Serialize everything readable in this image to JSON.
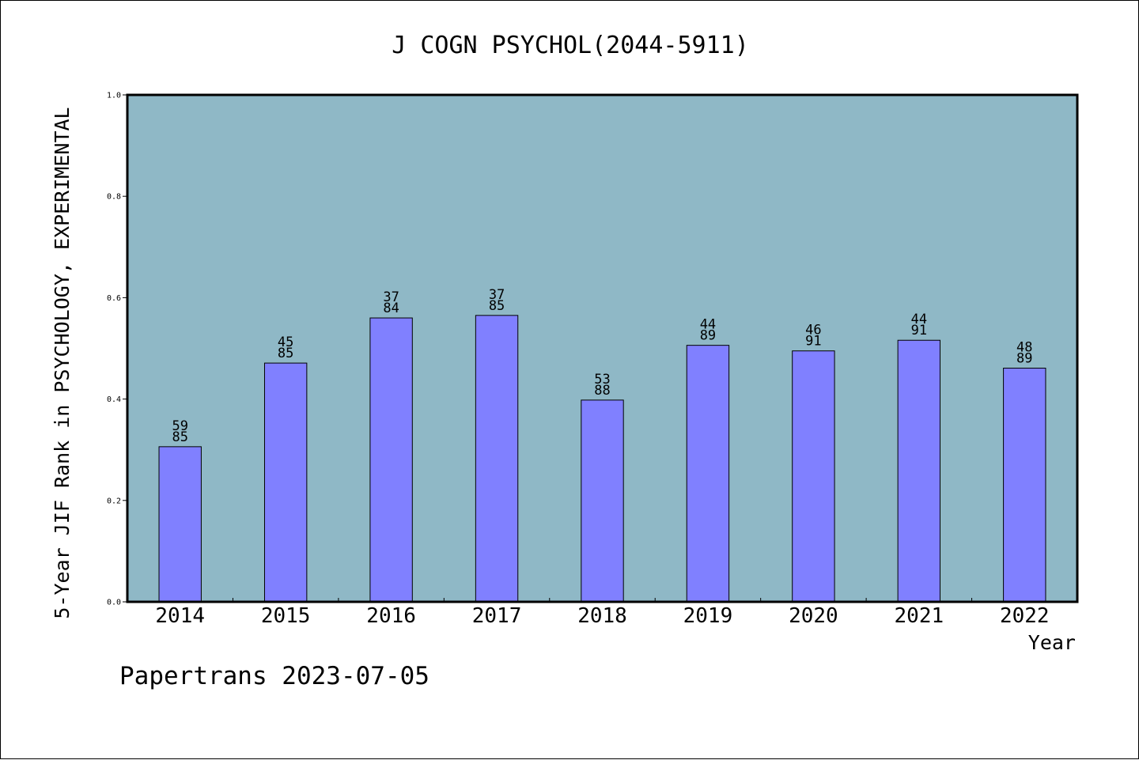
{
  "chart_data": {
    "type": "bar",
    "title": "J COGN PSYCHOL(2044-5911)",
    "xlabel": "Year",
    "ylabel": "5-Year JIF Rank in PSYCHOLOGY, EXPERIMENTAL",
    "ylim": [
      0,
      1.0
    ],
    "yticks": [
      "0.0",
      "0.2",
      "0.4",
      "0.6",
      "0.8",
      "1.0"
    ],
    "categories": [
      "2014",
      "2015",
      "2016",
      "2017",
      "2018",
      "2019",
      "2020",
      "2021",
      "2022"
    ],
    "values": [
      0.306,
      0.471,
      0.56,
      0.565,
      0.398,
      0.506,
      0.495,
      0.516,
      0.461
    ],
    "ranks": [
      "59",
      "45",
      "37",
      "37",
      "53",
      "44",
      "46",
      "44",
      "48"
    ],
    "totals": [
      "85",
      "85",
      "84",
      "85",
      "88",
      "89",
      "91",
      "91",
      "89"
    ],
    "grid": false,
    "colors": {
      "plot_bg": "#8fb8c6",
      "bar": "#8080ff",
      "bar_edge": "#000000"
    }
  },
  "footer": {
    "text": "Papertrans 2023-07-05"
  }
}
